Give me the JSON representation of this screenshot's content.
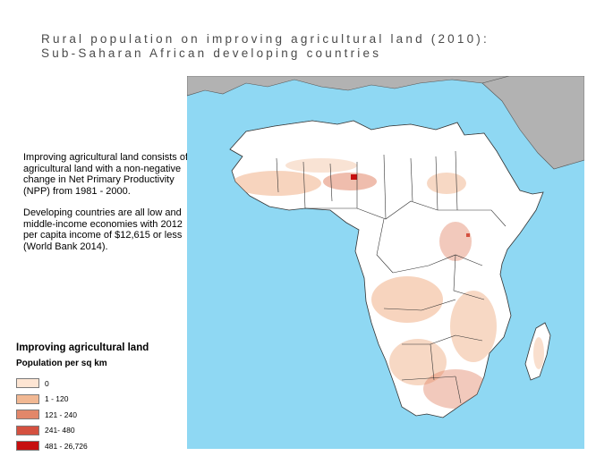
{
  "title": {
    "line1": "Rural population on improving agricultural land (2010):",
    "line2": "Sub-Saharan African developing countries"
  },
  "description": {
    "para1": "Improving agricultural land consists of agricultural land with a non-negative change in Net Primary Productivity (NPP) from 1981 - 2000.",
    "para2": "Developing countries are all low and middle-income economies with 2012 per capita income of $12,615 or less (World Bank 2014)."
  },
  "legend": {
    "title": "Improving agricultural land",
    "subtitle": "Population per sq km",
    "items": [
      {
        "label": "0",
        "color": "#fde5d3"
      },
      {
        "label": "1 - 120",
        "color": "#f1b893"
      },
      {
        "label": "121 - 240",
        "color": "#e2876a"
      },
      {
        "label": "241- 480",
        "color": "#d45140"
      },
      {
        "label": "481 - 26,726",
        "color": "#c60f0f"
      }
    ]
  },
  "map": {
    "ocean_color": "#8fd8f3",
    "land_color": "#ffffff",
    "non_study_land_color": "#b2b2b2",
    "border_color": "#333333"
  }
}
